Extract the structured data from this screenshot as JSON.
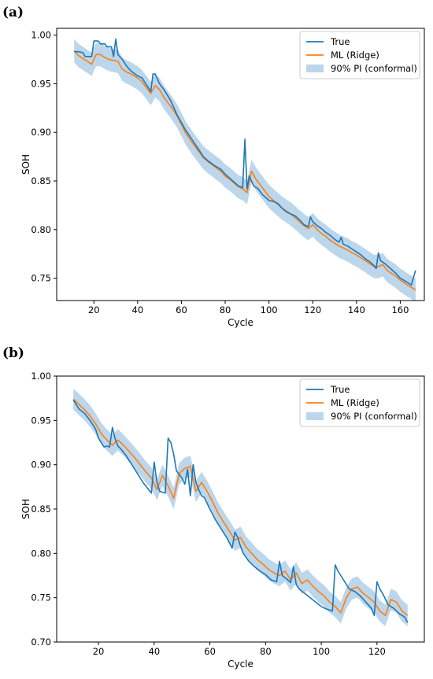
{
  "panels": [
    {
      "label": "(a)",
      "chart_data": {
        "type": "line",
        "xlabel": "Cycle",
        "ylabel": "SOH",
        "xlim": [
          3,
          171
        ],
        "ylim": [
          0.727,
          1.007
        ],
        "xticks": [
          20,
          40,
          60,
          80,
          100,
          120,
          140,
          160
        ],
        "yticks": [
          0.75,
          0.8,
          0.85,
          0.9,
          0.95,
          1.0
        ],
        "ytick_labels": [
          "0.75",
          "0.80",
          "0.85",
          "0.90",
          "0.95",
          "1.00"
        ],
        "legend_position": "upper right",
        "series": [
          {
            "name": "True",
            "color": "#1f77b4",
            "x": [
              11,
              13,
              15,
              16,
              17,
              19,
              20,
              21,
              22,
              23,
              25,
              26,
              27,
              28,
              29,
              30,
              31,
              33,
              35,
              37,
              40,
              42,
              44,
              46,
              47,
              48,
              50,
              52,
              55,
              58,
              60,
              62,
              65,
              68,
              70,
              72,
              75,
              78,
              80,
              82,
              84,
              86,
              88,
              89,
              90,
              91,
              92,
              93,
              95,
              97,
              100,
              102,
              104,
              106,
              108,
              110,
              112,
              114,
              116,
              118,
              119,
              120,
              122,
              124,
              126,
              128,
              130,
              132,
              133,
              134,
              136,
              138,
              140,
              142,
              144,
              146,
              148,
              149,
              150,
              151,
              153,
              155,
              158,
              160,
              163,
              165,
              167
            ],
            "y": [
              0.983,
              0.983,
              0.982,
              0.978,
              0.978,
              0.978,
              0.994,
              0.994,
              0.994,
              0.991,
              0.991,
              0.988,
              0.988,
              0.988,
              0.978,
              0.996,
              0.98,
              0.975,
              0.968,
              0.963,
              0.958,
              0.956,
              0.949,
              0.942,
              0.96,
              0.96,
              0.95,
              0.944,
              0.933,
              0.918,
              0.91,
              0.902,
              0.892,
              0.882,
              0.875,
              0.871,
              0.866,
              0.862,
              0.857,
              0.853,
              0.849,
              0.845,
              0.843,
              0.893,
              0.842,
              0.855,
              0.85,
              0.845,
              0.842,
              0.836,
              0.83,
              0.829,
              0.827,
              0.822,
              0.818,
              0.816,
              0.814,
              0.81,
              0.805,
              0.803,
              0.813,
              0.808,
              0.804,
              0.801,
              0.797,
              0.794,
              0.79,
              0.787,
              0.792,
              0.785,
              0.783,
              0.78,
              0.777,
              0.774,
              0.77,
              0.767,
              0.763,
              0.76,
              0.776,
              0.768,
              0.765,
              0.761,
              0.755,
              0.75,
              0.746,
              0.743,
              0.758
            ]
          },
          {
            "name": "ML (Ridge)",
            "color": "#ff7f0e",
            "x": [
              11,
              13,
              15,
              17,
              19,
              21,
              23,
              25,
              27,
              29,
              31,
              33,
              35,
              37,
              40,
              42,
              44,
              46,
              48,
              50,
              52,
              55,
              58,
              60,
              62,
              65,
              68,
              70,
              72,
              75,
              78,
              80,
              82,
              84,
              86,
              88,
              90,
              92,
              94,
              96,
              98,
              100,
              102,
              104,
              106,
              108,
              110,
              112,
              114,
              116,
              118,
              120,
              122,
              124,
              126,
              128,
              130,
              132,
              134,
              136,
              138,
              140,
              142,
              144,
              146,
              148,
              150,
              152,
              154,
              156,
              158,
              160,
              162,
              164,
              167
            ],
            "y": [
              0.984,
              0.979,
              0.976,
              0.973,
              0.97,
              0.98,
              0.98,
              0.977,
              0.975,
              0.974,
              0.973,
              0.965,
              0.962,
              0.96,
              0.956,
              0.952,
              0.946,
              0.94,
              0.948,
              0.944,
              0.936,
              0.927,
              0.917,
              0.908,
              0.899,
              0.889,
              0.88,
              0.874,
              0.87,
              0.865,
              0.86,
              0.855,
              0.852,
              0.848,
              0.844,
              0.842,
              0.838,
              0.86,
              0.852,
              0.846,
              0.84,
              0.834,
              0.83,
              0.826,
              0.822,
              0.819,
              0.816,
              0.812,
              0.808,
              0.804,
              0.801,
              0.805,
              0.8,
              0.796,
              0.793,
              0.789,
              0.786,
              0.783,
              0.781,
              0.779,
              0.776,
              0.774,
              0.771,
              0.768,
              0.765,
              0.762,
              0.762,
              0.764,
              0.758,
              0.755,
              0.752,
              0.748,
              0.745,
              0.742,
              0.738
            ]
          }
        ],
        "band": {
          "name": "90% PI (conformal)",
          "color": "#a6c8e4",
          "halfwidth": 0.012
        }
      }
    },
    {
      "label": "(b)",
      "chart_data": {
        "type": "line",
        "xlabel": "Cycle",
        "ylabel": "SOH",
        "xlim": [
          5,
          137
        ],
        "ylim": [
          0.7,
          1.0
        ],
        "xticks": [
          20,
          40,
          60,
          80,
          100,
          120
        ],
        "yticks": [
          0.7,
          0.75,
          0.8,
          0.85,
          0.9,
          0.95,
          1.0
        ],
        "ytick_labels": [
          "0.70",
          "0.75",
          "0.80",
          "0.85",
          "0.90",
          "0.95",
          "1.00"
        ],
        "legend_position": "upper right",
        "series": [
          {
            "name": "True",
            "color": "#1f77b4",
            "x": [
              11,
              13,
              15,
              17,
              19,
              20,
              21,
              22,
              23,
              24,
              25,
              26,
              27,
              28,
              30,
              32,
              34,
              36,
              38,
              39,
              40,
              41,
              42,
              44,
              45,
              46,
              47,
              48,
              50,
              51,
              52,
              53,
              54,
              55,
              56,
              57,
              58,
              60,
              62,
              64,
              66,
              68,
              69,
              70,
              71,
              72,
              74,
              76,
              78,
              80,
              82,
              84,
              85,
              86,
              88,
              89,
              90,
              91,
              92,
              94,
              96,
              98,
              100,
              102,
              104,
              105,
              106,
              108,
              110,
              112,
              114,
              116,
              118,
              119,
              120,
              121,
              122,
              124,
              126,
              128,
              130,
              131
            ],
            "y": [
              0.973,
              0.963,
              0.958,
              0.95,
              0.94,
              0.93,
              0.925,
              0.92,
              0.921,
              0.92,
              0.942,
              0.929,
              0.921,
              0.918,
              0.91,
              0.9,
              0.89,
              0.88,
              0.872,
              0.868,
              0.903,
              0.88,
              0.87,
              0.868,
              0.93,
              0.925,
              0.912,
              0.893,
              0.885,
              0.878,
              0.895,
              0.865,
              0.9,
              0.88,
              0.872,
              0.865,
              0.863,
              0.85,
              0.838,
              0.828,
              0.818,
              0.806,
              0.824,
              0.818,
              0.808,
              0.8,
              0.791,
              0.785,
              0.78,
              0.776,
              0.77,
              0.768,
              0.791,
              0.775,
              0.77,
              0.767,
              0.785,
              0.765,
              0.76,
              0.755,
              0.75,
              0.745,
              0.74,
              0.737,
              0.735,
              0.787,
              0.78,
              0.77,
              0.76,
              0.757,
              0.752,
              0.745,
              0.738,
              0.73,
              0.768,
              0.76,
              0.755,
              0.742,
              0.738,
              0.732,
              0.728,
              0.722
            ]
          },
          {
            "name": "ML (Ridge)",
            "color": "#ff7f0e",
            "x": [
              11,
              13,
              15,
              17,
              19,
              21,
              23,
              25,
              27,
              29,
              31,
              33,
              35,
              37,
              39,
              41,
              43,
              45,
              47,
              49,
              51,
              53,
              55,
              57,
              59,
              61,
              63,
              65,
              67,
              69,
              71,
              73,
              75,
              77,
              79,
              81,
              83,
              85,
              87,
              89,
              91,
              93,
              95,
              97,
              99,
              101,
              103,
              105,
              107,
              109,
              111,
              113,
              115,
              117,
              119,
              121,
              123,
              125,
              127,
              129,
              131
            ],
            "y": [
              0.974,
              0.968,
              0.962,
              0.955,
              0.946,
              0.935,
              0.928,
              0.922,
              0.928,
              0.922,
              0.915,
              0.908,
              0.9,
              0.892,
              0.885,
              0.872,
              0.888,
              0.876,
              0.862,
              0.89,
              0.896,
              0.898,
              0.87,
              0.88,
              0.87,
              0.858,
              0.845,
              0.835,
              0.825,
              0.815,
              0.818,
              0.807,
              0.8,
              0.793,
              0.788,
              0.782,
              0.778,
              0.775,
              0.78,
              0.77,
              0.778,
              0.766,
              0.77,
              0.763,
              0.757,
              0.752,
              0.745,
              0.74,
              0.733,
              0.75,
              0.76,
              0.762,
              0.755,
              0.75,
              0.745,
              0.735,
              0.73,
              0.748,
              0.745,
              0.735,
              0.73
            ]
          }
        ],
        "band": {
          "name": "90% PI (conformal)",
          "color": "#a6c8e4",
          "halfwidth": 0.012
        }
      }
    }
  ]
}
